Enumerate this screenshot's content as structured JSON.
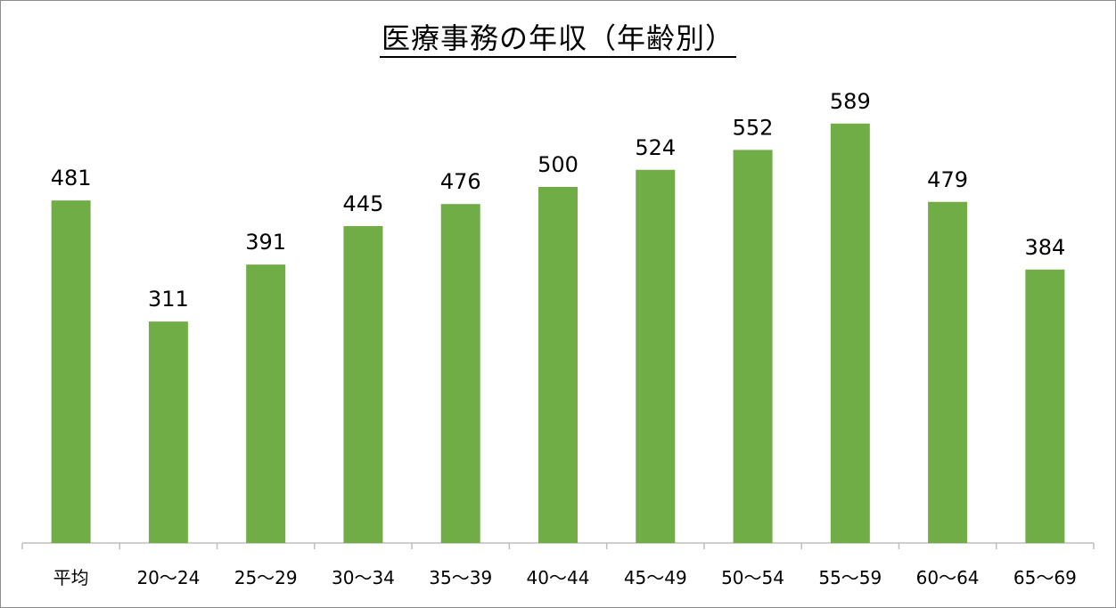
{
  "chart_data": {
    "type": "bar",
    "title": "医療事務の年収（年齢別）",
    "categories": [
      "平均",
      "20〜24",
      "25〜29",
      "30〜34",
      "35〜39",
      "40〜44",
      "45〜49",
      "50〜54",
      "55〜59",
      "60〜64",
      "65〜69"
    ],
    "values": [
      481,
      311,
      391,
      445,
      476,
      500,
      524,
      552,
      589,
      479,
      384
    ],
    "xlabel": "",
    "ylabel": "",
    "ylim": [
      0,
      600
    ],
    "data_labels": true,
    "grid": false,
    "bar_color": "#70ad47"
  }
}
